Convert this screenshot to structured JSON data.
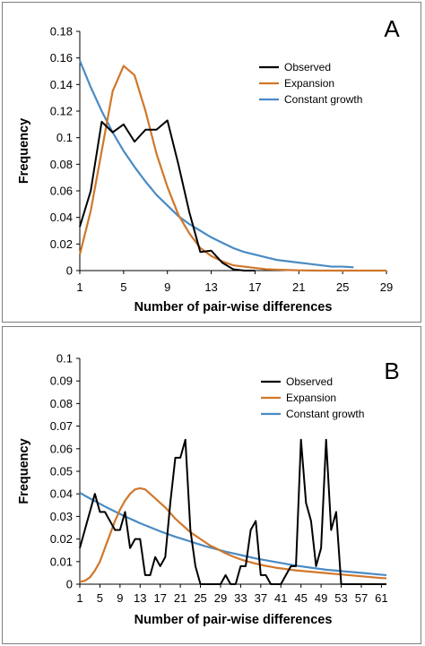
{
  "chart_data": [
    {
      "type": "line",
      "panel_label": "A",
      "xlabel": "Number of pair-wise differences",
      "ylabel": "Frequency",
      "xlim": [
        1,
        29
      ],
      "ylim": [
        0,
        0.18
      ],
      "x_ticks": [
        1,
        5,
        9,
        13,
        17,
        21,
        25,
        29
      ],
      "y_ticks": [
        0,
        0.02,
        0.04,
        0.06,
        0.08,
        0.1,
        0.12,
        0.14,
        0.16,
        0.18
      ],
      "y_tick_labels": [
        "0",
        "0.02",
        "0.04",
        "0.06",
        "0.08",
        "0.1",
        "0.12",
        "0.14",
        "0.16",
        "0.18"
      ],
      "grid": false,
      "legend_position": "top-right",
      "series": [
        {
          "name": "Observed",
          "color": "#000000",
          "x": [
            1,
            2,
            3,
            4,
            5,
            6,
            7,
            8,
            9,
            10,
            11,
            12,
            13,
            14,
            15,
            16,
            17
          ],
          "y": [
            0.033,
            0.06,
            0.112,
            0.104,
            0.11,
            0.097,
            0.106,
            0.106,
            0.113,
            0.08,
            0.044,
            0.014,
            0.015,
            0.006,
            0.001,
            0.0,
            0.0
          ]
        },
        {
          "name": "Expansion",
          "color": "#d0772b",
          "x": [
            1,
            2,
            3,
            4,
            5,
            6,
            7,
            8,
            9,
            10,
            11,
            12,
            13,
            14,
            15,
            16,
            17,
            18,
            19,
            20,
            21,
            22,
            23,
            24,
            25,
            26,
            27,
            28,
            29
          ],
          "y": [
            0.012,
            0.045,
            0.09,
            0.135,
            0.154,
            0.147,
            0.12,
            0.088,
            0.063,
            0.042,
            0.028,
            0.017,
            0.011,
            0.007,
            0.004,
            0.003,
            0.002,
            0.001,
            0.0007,
            0.0004,
            0.0002,
            0.0001,
            0.0,
            0.0,
            0.0,
            0.0,
            0.0,
            0.0,
            0.0
          ]
        },
        {
          "name": "Constant growth",
          "color": "#4a8bc4",
          "x": [
            1,
            2,
            3,
            4,
            5,
            6,
            7,
            8,
            9,
            10,
            11,
            12,
            13,
            14,
            15,
            16,
            17,
            18,
            19,
            20,
            21,
            22,
            23,
            24,
            25,
            26
          ],
          "y": [
            0.158,
            0.138,
            0.12,
            0.104,
            0.09,
            0.078,
            0.067,
            0.057,
            0.049,
            0.041,
            0.035,
            0.03,
            0.025,
            0.021,
            0.017,
            0.014,
            0.012,
            0.01,
            0.008,
            0.007,
            0.006,
            0.005,
            0.004,
            0.003,
            0.003,
            0.0025
          ]
        }
      ]
    },
    {
      "type": "line",
      "panel_label": "B",
      "xlabel": "Number of pair-wise differences",
      "ylabel": "Frequency",
      "xlim": [
        1,
        62
      ],
      "ylim": [
        0,
        0.1
      ],
      "x_ticks": [
        1,
        5,
        9,
        13,
        17,
        21,
        25,
        29,
        33,
        37,
        41,
        45,
        49,
        53,
        57,
        61
      ],
      "y_ticks": [
        0,
        0.01,
        0.02,
        0.03,
        0.04,
        0.05,
        0.06,
        0.07,
        0.08,
        0.09,
        0.1
      ],
      "y_tick_labels": [
        "0",
        "0.01",
        "0.02",
        "0.03",
        "0.04",
        "0.05",
        "0.06",
        "0.07",
        "0.08",
        "0.09",
        "0.1"
      ],
      "grid": false,
      "legend_position": "top-right",
      "series": [
        {
          "name": "Observed",
          "color": "#000000",
          "x": [
            1,
            2,
            3,
            4,
            5,
            6,
            7,
            8,
            9,
            10,
            11,
            12,
            13,
            14,
            15,
            16,
            17,
            18,
            19,
            20,
            21,
            22,
            23,
            24,
            25,
            26,
            27,
            28,
            29,
            30,
            31,
            32,
            33,
            34,
            35,
            36,
            37,
            38,
            39,
            40,
            41,
            42,
            43,
            44,
            45,
            46,
            47,
            48,
            49,
            50,
            51,
            52,
            53,
            54,
            55,
            56,
            57,
            58,
            59,
            60,
            61,
            62
          ],
          "y": [
            0.016,
            0.024,
            0.032,
            0.04,
            0.032,
            0.032,
            0.028,
            0.024,
            0.024,
            0.032,
            0.016,
            0.02,
            0.02,
            0.004,
            0.004,
            0.012,
            0.008,
            0.012,
            0.036,
            0.056,
            0.056,
            0.064,
            0.024,
            0.008,
            0.0,
            0.0,
            0.0,
            0.0,
            0.0,
            0.004,
            0.0,
            0.0,
            0.008,
            0.008,
            0.024,
            0.028,
            0.004,
            0.004,
            0.0,
            0.0,
            0.0,
            0.004,
            0.008,
            0.008,
            0.064,
            0.036,
            0.028,
            0.008,
            0.016,
            0.064,
            0.024,
            0.032,
            0.0,
            0.0,
            0.0,
            0.0,
            0.0,
            0.0,
            0.0,
            0.0,
            0.0,
            0.0
          ]
        },
        {
          "name": "Expansion",
          "color": "#d0772b",
          "x": [
            1,
            2,
            3,
            4,
            5,
            6,
            7,
            8,
            9,
            10,
            11,
            12,
            13,
            14,
            15,
            16,
            17,
            18,
            19,
            20,
            21,
            22,
            23,
            24,
            25,
            26,
            27,
            28,
            29,
            30,
            31,
            32,
            33,
            34,
            35,
            36,
            37,
            38,
            39,
            40,
            41,
            42,
            43,
            44,
            45,
            46,
            47,
            48,
            49,
            50,
            51,
            52,
            53,
            54,
            55,
            56,
            57,
            58,
            59,
            60,
            61,
            62
          ],
          "y": [
            0.001,
            0.0015,
            0.003,
            0.006,
            0.01,
            0.016,
            0.022,
            0.028,
            0.033,
            0.037,
            0.04,
            0.042,
            0.0425,
            0.042,
            0.04,
            0.038,
            0.036,
            0.034,
            0.0315,
            0.029,
            0.027,
            0.025,
            0.023,
            0.0215,
            0.02,
            0.0185,
            0.017,
            0.016,
            0.0148,
            0.0137,
            0.0127,
            0.0118,
            0.011,
            0.0103,
            0.0097,
            0.0091,
            0.0086,
            0.0081,
            0.0077,
            0.0073,
            0.007,
            0.0067,
            0.0064,
            0.0061,
            0.0059,
            0.0057,
            0.0055,
            0.0053,
            0.0051,
            0.0049,
            0.0047,
            0.0045,
            0.0043,
            0.0041,
            0.0039,
            0.0037,
            0.0035,
            0.0033,
            0.0031,
            0.0029,
            0.0027,
            0.0026
          ]
        },
        {
          "name": "Constant growth",
          "color": "#4a8bc4",
          "x": [
            1,
            2,
            3,
            4,
            5,
            6,
            7,
            8,
            9,
            10,
            11,
            12,
            13,
            14,
            15,
            16,
            17,
            18,
            19,
            20,
            21,
            22,
            23,
            24,
            25,
            26,
            27,
            28,
            29,
            30,
            31,
            32,
            33,
            34,
            35,
            36,
            37,
            38,
            39,
            40,
            41,
            42,
            43,
            44,
            45,
            46,
            47,
            48,
            49,
            50,
            51,
            52,
            53,
            54,
            55,
            56,
            57,
            58,
            59,
            60,
            61,
            62
          ],
          "y": [
            0.0405,
            0.0392,
            0.038,
            0.0368,
            0.0356,
            0.0344,
            0.0333,
            0.0322,
            0.0311,
            0.03,
            0.029,
            0.028,
            0.027,
            0.0261,
            0.0252,
            0.0243,
            0.0234,
            0.0226,
            0.0218,
            0.021,
            0.0203,
            0.0196,
            0.0189,
            0.0182,
            0.0175,
            0.0168,
            0.0162,
            0.0156,
            0.015,
            0.0144,
            0.0139,
            0.0134,
            0.0129,
            0.0124,
            0.0119,
            0.0114,
            0.011,
            0.0106,
            0.0102,
            0.0098,
            0.0094,
            0.009,
            0.0086,
            0.0082,
            0.0079,
            0.0076,
            0.0073,
            0.007,
            0.0067,
            0.0064,
            0.0062,
            0.006,
            0.0058,
            0.0056,
            0.0054,
            0.0052,
            0.005,
            0.0048,
            0.0046,
            0.0044,
            0.0042,
            0.004
          ]
        }
      ]
    }
  ]
}
